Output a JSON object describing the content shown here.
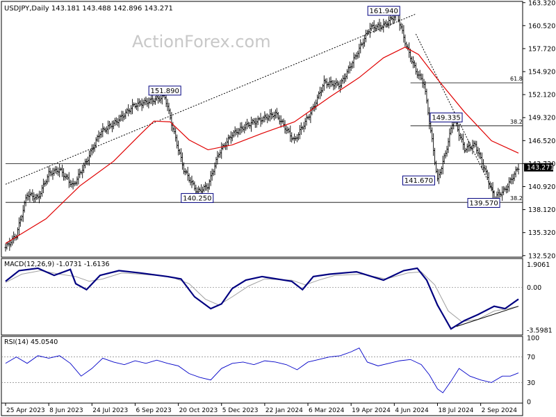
{
  "chart_data": [
    {
      "type": "ohlc",
      "title": "USDJPY,Daily  143.181 143.488 142.896 143.271",
      "watermark": "ActionForex.com",
      "ylim": [
        132.5,
        163.3
      ],
      "y_ticks": [
        "163.320",
        "160.520",
        "157.720",
        "154.920",
        "152.120",
        "149.320",
        "146.520",
        "143.720",
        "140.920",
        "138.120",
        "135.320",
        "132.520"
      ],
      "last_price": "143.271",
      "colors": {
        "bars": "#000000",
        "sma": "#e00000",
        "trendline": "#000000",
        "levels": "#000000",
        "label_border": "#000080",
        "last_price_bg": "#000000",
        "last_price_text": "#ffffff"
      },
      "series": [
        {
          "name": "Price",
          "values": [
            [
              0,
              133.5
            ],
            [
              8,
              135
            ],
            [
              16,
              140
            ],
            [
              24,
              139.5
            ],
            [
              32,
              142.5
            ],
            [
              40,
              143
            ],
            [
              50,
              141
            ],
            [
              60,
              144
            ],
            [
              70,
              147.5
            ],
            [
              82,
              148.8
            ],
            [
              95,
              150.8
            ],
            [
              110,
              151.5
            ],
            [
              118,
              151.89
            ],
            [
              124,
              148
            ],
            [
              132,
              143
            ],
            [
              142,
              140.25
            ],
            [
              150,
              141
            ],
            [
              158,
              145
            ],
            [
              168,
              147.3
            ],
            [
              180,
              148.5
            ],
            [
              200,
              149.8
            ],
            [
              214,
              146.5
            ],
            [
              228,
              150.5
            ],
            [
              236,
              153.6
            ],
            [
              248,
              153.3
            ],
            [
              260,
              157
            ],
            [
              270,
              160.3
            ],
            [
              280,
              160.5
            ],
            [
              290,
              161.94
            ],
            [
              297,
              158
            ],
            [
              304,
              155
            ],
            [
              310,
              153.5
            ],
            [
              316,
              146.5
            ],
            [
              320,
              141.67
            ],
            [
              326,
              145
            ],
            [
              332,
              149.335
            ],
            [
              340,
              145.5
            ],
            [
              348,
              146
            ],
            [
              355,
              143
            ],
            [
              362,
              139.57
            ],
            [
              370,
              140.5
            ],
            [
              380,
              143.271
            ]
          ]
        },
        {
          "name": "SMA",
          "values": [
            [
              0,
              134
            ],
            [
              30,
              137
            ],
            [
              55,
              141
            ],
            [
              80,
              144
            ],
            [
              100,
              147.3
            ],
            [
              110,
              148.9
            ],
            [
              122,
              148.8
            ],
            [
              136,
              146.6
            ],
            [
              150,
              145.4
            ],
            [
              168,
              146
            ],
            [
              190,
              147.4
            ],
            [
              214,
              148.8
            ],
            [
              240,
              151.8
            ],
            [
              262,
              154.2
            ],
            [
              280,
              156.6
            ],
            [
              296,
              157.9
            ],
            [
              306,
              157
            ],
            [
              320,
              154
            ],
            [
              340,
              150
            ],
            [
              360,
              146.5
            ],
            [
              380,
              145
            ]
          ]
        }
      ],
      "trendlines": [
        {
          "from": [
            0,
            141.2
          ],
          "to": [
            304,
            161.94
          ]
        },
        {
          "from": [
            304,
            159.5
          ],
          "to": [
            362,
            140.1
          ]
        }
      ],
      "levels": [
        {
          "y": 153.56,
          "label": "61.8",
          "start_x": 300
        },
        {
          "y": 148.33,
          "label": "38.2",
          "start_x": 300
        },
        {
          "y": 143.72,
          "label": "",
          "start_x": 0
        },
        {
          "y": 139.0,
          "label": "38.2",
          "start_x": 0
        }
      ],
      "annotations": [
        {
          "text": "161.940",
          "x": 290,
          "y": 161.94
        },
        {
          "text": "151.890",
          "x": 118,
          "y": 151.89
        },
        {
          "text": "140.250",
          "x": 142,
          "y": 140.25
        },
        {
          "text": "149.335",
          "x": 328,
          "y": 149.335
        },
        {
          "text": "141.670",
          "x": 320,
          "y": 141.67
        },
        {
          "text": "139.570",
          "x": 362,
          "y": 139.57
        }
      ]
    },
    {
      "type": "line",
      "title": "MACD(12,26,9) -1.0731 -1.6136",
      "ylim": [
        -3.9,
        2.3
      ],
      "y_ticks": [
        "1.9061",
        "0.00",
        "-3.5981"
      ],
      "series": [
        {
          "name": "MACD",
          "values": [
            [
              0,
              0.5
            ],
            [
              10,
              1.4
            ],
            [
              24,
              1.6
            ],
            [
              36,
              1.0
            ],
            [
              48,
              1.5
            ],
            [
              52,
              0.3
            ],
            [
              60,
              -0.2
            ],
            [
              70,
              1.0
            ],
            [
              84,
              1.4
            ],
            [
              100,
              1.2
            ],
            [
              120,
              0.9
            ],
            [
              130,
              0.7
            ],
            [
              140,
              -0.8
            ],
            [
              152,
              -1.8
            ],
            [
              160,
              -1.4
            ],
            [
              168,
              -0.1
            ],
            [
              178,
              0.6
            ],
            [
              190,
              0.9
            ],
            [
              212,
              0.5
            ],
            [
              220,
              -0.2
            ],
            [
              228,
              0.9
            ],
            [
              240,
              1.1
            ],
            [
              260,
              1.3
            ],
            [
              280,
              0.6
            ],
            [
              295,
              1.4
            ],
            [
              305,
              1.6
            ],
            [
              312,
              0.6
            ],
            [
              320,
              -1.5
            ],
            [
              330,
              -3.5
            ],
            [
              340,
              -2.8
            ],
            [
              350,
              -2.3
            ],
            [
              362,
              -1.6
            ],
            [
              370,
              -1.8
            ],
            [
              380,
              -1.0
            ]
          ]
        },
        {
          "name": "Signal",
          "values": [
            [
              0,
              0.4
            ],
            [
              12,
              1.1
            ],
            [
              26,
              1.4
            ],
            [
              40,
              1.1
            ],
            [
              52,
              0.9
            ],
            [
              62,
              0.5
            ],
            [
              72,
              0.7
            ],
            [
              86,
              1.2
            ],
            [
              100,
              1.1
            ],
            [
              122,
              0.9
            ],
            [
              136,
              0.3
            ],
            [
              148,
              -1.0
            ],
            [
              158,
              -1.5
            ],
            [
              168,
              -0.8
            ],
            [
              180,
              0.1
            ],
            [
              192,
              0.7
            ],
            [
              212,
              0.6
            ],
            [
              222,
              0.2
            ],
            [
              232,
              0.6
            ],
            [
              244,
              1.0
            ],
            [
              264,
              1.1
            ],
            [
              282,
              0.7
            ],
            [
              298,
              1.2
            ],
            [
              308,
              1.3
            ],
            [
              318,
              0.2
            ],
            [
              328,
              -2.0
            ],
            [
              338,
              -2.9
            ],
            [
              350,
              -2.7
            ],
            [
              362,
              -2.0
            ],
            [
              372,
              -1.8
            ],
            [
              380,
              -1.6
            ]
          ]
        }
      ],
      "trendlines": [
        {
          "from": [
            334,
            -3.3
          ],
          "to": [
            380,
            -1.6
          ]
        }
      ],
      "colors": {
        "macd": "#000080",
        "signal": "#a0a0a0",
        "trendline": "#000000",
        "zero_line": "#808080"
      }
    },
    {
      "type": "line",
      "title": "RSI(14) 45.0540",
      "ylim": [
        0,
        100
      ],
      "y_ticks": [
        "100",
        "70",
        "30",
        "0"
      ],
      "guide_levels": [
        70,
        30
      ],
      "series": [
        {
          "name": "RSI",
          "values": [
            [
              0,
              60
            ],
            [
              8,
              70
            ],
            [
              16,
              60
            ],
            [
              24,
              72
            ],
            [
              32,
              68
            ],
            [
              40,
              72
            ],
            [
              48,
              60
            ],
            [
              56,
              40
            ],
            [
              64,
              52
            ],
            [
              72,
              68
            ],
            [
              80,
              62
            ],
            [
              88,
              58
            ],
            [
              96,
              64
            ],
            [
              104,
              60
            ],
            [
              112,
              65
            ],
            [
              120,
              60
            ],
            [
              128,
              56
            ],
            [
              136,
              44
            ],
            [
              144,
              38
            ],
            [
              152,
              34
            ],
            [
              160,
              52
            ],
            [
              168,
              60
            ],
            [
              176,
              62
            ],
            [
              184,
              58
            ],
            [
              192,
              64
            ],
            [
              200,
              62
            ],
            [
              208,
              58
            ],
            [
              216,
              50
            ],
            [
              224,
              62
            ],
            [
              232,
              66
            ],
            [
              240,
              70
            ],
            [
              248,
              72
            ],
            [
              256,
              78
            ],
            [
              262,
              84
            ],
            [
              268,
              62
            ],
            [
              276,
              56
            ],
            [
              284,
              60
            ],
            [
              292,
              64
            ],
            [
              300,
              66
            ],
            [
              308,
              58
            ],
            [
              314,
              42
            ],
            [
              320,
              20
            ],
            [
              324,
              14
            ],
            [
              330,
              32
            ],
            [
              336,
              52
            ],
            [
              344,
              40
            ],
            [
              352,
              34
            ],
            [
              360,
              30
            ],
            [
              368,
              40
            ],
            [
              374,
              40
            ],
            [
              380,
              45
            ]
          ]
        }
      ],
      "colors": {
        "rsi": "#0000c8",
        "guides": "#808080"
      }
    }
  ],
  "x_axis": {
    "tick_labels": [
      {
        "label": "25 Apr 2023",
        "x": 0
      },
      {
        "label": "8 Jun 2023",
        "x": 32
      },
      {
        "label": "24 Jul 2023",
        "x": 64
      },
      {
        "label": "6 Sep 2023",
        "x": 96
      },
      {
        "label": "20 Oct 2023",
        "x": 128
      },
      {
        "label": "5 Dec 2023",
        "x": 160
      },
      {
        "label": "22 Jan 2024",
        "x": 192
      },
      {
        "label": "6 Mar 2024",
        "x": 224
      },
      {
        "label": "19 Apr 2024",
        "x": 256
      },
      {
        "label": "4 Jun 2024",
        "x": 288
      },
      {
        "label": "18 Jul 2024",
        "x": 320
      },
      {
        "label": "2 Sep 2024",
        "x": 352
      }
    ],
    "bar_count": 381
  }
}
